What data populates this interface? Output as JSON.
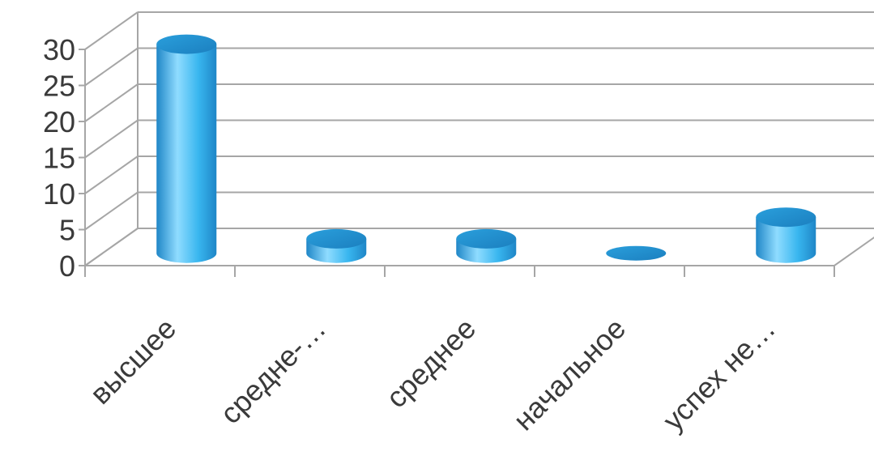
{
  "chart_data": {
    "type": "bar",
    "style": "3d-cylinder",
    "categories": [
      "высшее",
      "средне-…",
      "среднее",
      "начальное",
      "успех не…"
    ],
    "values": [
      29,
      2,
      2,
      0,
      5
    ],
    "title": "",
    "xlabel": "",
    "ylabel": "",
    "ylim": [
      0,
      30
    ],
    "yticks": [
      0,
      5,
      10,
      15,
      20,
      25,
      30
    ],
    "grid": true,
    "legend": "none",
    "colors": {
      "bar": "#38b6ef",
      "bar_highlight": "#8fdcff",
      "bar_shadow": "#1f86c7",
      "grid": "#a6a6a6",
      "text": "#3a3a3a"
    }
  }
}
